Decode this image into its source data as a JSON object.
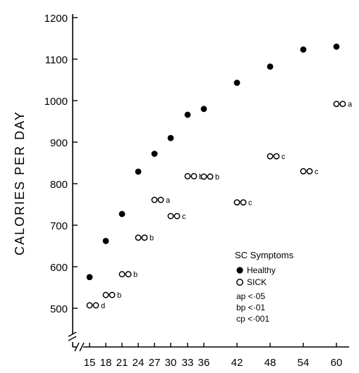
{
  "chart_data": {
    "type": "scatter",
    "title": "",
    "xlabel": "",
    "ylabel": "CALORIES PER DAY",
    "xticks": [
      "15",
      "18",
      "21",
      "24",
      "27",
      "30",
      "33",
      "36",
      "42",
      "48",
      "54",
      "60"
    ],
    "yticks": [
      "500",
      "600",
      "700",
      "800",
      "900",
      "1000",
      "1100",
      "1200"
    ],
    "ylim": [
      500,
      1200
    ],
    "axis_break": true,
    "grid": false,
    "legend_position": "bottom-right",
    "legend": {
      "title": "SC Symptoms",
      "items": [
        {
          "label": "Healthy",
          "marker": "filled-circle"
        },
        {
          "label": "SICK",
          "marker": "open-circle"
        }
      ],
      "notes": [
        "ap <·05",
        "bp <·01",
        "cp <·001"
      ]
    },
    "series": [
      {
        "name": "Healthy",
        "marker": "filled-circle",
        "points": [
          {
            "x": 15,
            "y": 575
          },
          {
            "x": 18,
            "y": 662
          },
          {
            "x": 21,
            "y": 727
          },
          {
            "x": 24,
            "y": 829
          },
          {
            "x": 27,
            "y": 872
          },
          {
            "x": 30,
            "y": 910
          },
          {
            "x": 33,
            "y": 966
          },
          {
            "x": 36,
            "y": 980
          },
          {
            "x": 42,
            "y": 1043
          },
          {
            "x": 48,
            "y": 1082
          },
          {
            "x": 54,
            "y": 1123
          },
          {
            "x": 60,
            "y": 1130
          }
        ]
      },
      {
        "name": "SICK",
        "marker": "open-circle",
        "points": [
          {
            "x": 15,
            "y": 507,
            "sig": "d"
          },
          {
            "x": 18,
            "y": 532,
            "sig": "b"
          },
          {
            "x": 21,
            "y": 582,
            "sig": "b"
          },
          {
            "x": 24,
            "y": 670,
            "sig": "b"
          },
          {
            "x": 27,
            "y": 761,
            "sig": "a"
          },
          {
            "x": 30,
            "y": 722,
            "sig": "c"
          },
          {
            "x": 33,
            "y": 818,
            "sig": "b"
          },
          {
            "x": 36,
            "y": 817,
            "sig": "b"
          },
          {
            "x": 42,
            "y": 755,
            "sig": "c"
          },
          {
            "x": 48,
            "y": 866,
            "sig": "c"
          },
          {
            "x": 54,
            "y": 830,
            "sig": "c"
          },
          {
            "x": 60,
            "y": 992,
            "sig": "a"
          }
        ]
      }
    ]
  }
}
